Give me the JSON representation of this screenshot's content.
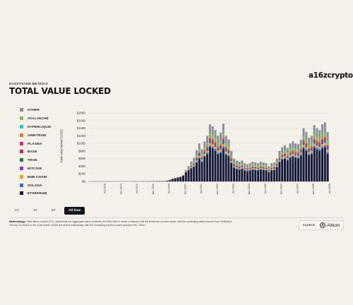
{
  "brand": "a16zcrypto",
  "header": {
    "eyebrow": "ECOSYSTEM METRICS",
    "title": "TOTAL VALUE LOCKED"
  },
  "legend": [
    {
      "name": "OTHER",
      "color": "#8a8f99"
    },
    {
      "name": "AVALANCHE",
      "color": "#7ec43a"
    },
    {
      "name": "HYPERLIQUID",
      "color": "#27c3d6"
    },
    {
      "name": "ARBITRUM",
      "color": "#e07a2a"
    },
    {
      "name": "PLASMA",
      "color": "#e0246f"
    },
    {
      "name": "BASE",
      "color": "#d6204a"
    },
    {
      "name": "TRON",
      "color": "#1f7a3a"
    },
    {
      "name": "BITCOIN",
      "color": "#7a3ad6"
    },
    {
      "name": "BNB CHAIN",
      "color": "#e8a020"
    },
    {
      "name": "SOLANA",
      "color": "#2f6fe0"
    },
    {
      "name": "ETHEREUM",
      "color": "#141a38"
    }
  ],
  "tabs": [
    {
      "label": "1Y",
      "active": false
    },
    {
      "label": "3Y",
      "active": false
    },
    {
      "label": "5Y",
      "active": false
    },
    {
      "label": "All time",
      "active": true
    }
  ],
  "footer": {
    "methodology_label": "Methodology:",
    "methodology_text": "Total Value Locked (TVL) represents the aggregate value of assets (in USD) held in smart contracts of all the protocols on each chain, with the underlying data sourced from DefiLlama.",
    "methodology_text2": "The top 10 chains in the most recent month are shown individually, with the remaining tracked chains grouped into \"Other.\"",
    "source_label": "SOURCE",
    "source_name": "Allium"
  },
  "chart_data": {
    "type": "bar",
    "stacked": true,
    "ylabel": "Total value locked (USD)",
    "ylim": [
      0,
      180
    ],
    "yticks": [
      0,
      20,
      40,
      60,
      80,
      100,
      120,
      140,
      160,
      180
    ],
    "ytick_labels": [
      "$0",
      "$20B",
      "$40B",
      "$60B",
      "$80B",
      "$100B",
      "$120B",
      "$140B",
      "$160B",
      "$180B"
    ],
    "x_ticks": [
      "Jul 2018",
      "Jan 2019",
      "Jul 2019",
      "Jan 2020",
      "Jul 2020",
      "Jan 2021",
      "Jul 2021",
      "Jan 2022",
      "Jul 2022",
      "Jan 2023",
      "Jul 2023",
      "Jan 2024",
      "Jul 2024",
      "Jan 2025",
      "Jul 2025"
    ],
    "series_order": [
      "ETHEREUM",
      "SOLANA",
      "BNB CHAIN",
      "BITCOIN",
      "TRON",
      "BASE",
      "PLASMA",
      "ARBITRUM",
      "HYPERLIQUID",
      "AVALANCHE",
      "OTHER"
    ],
    "start_month": "2018-01",
    "totals": [
      0.1,
      0.1,
      0.2,
      0.2,
      0.2,
      0.2,
      0.3,
      0.3,
      0.3,
      0.3,
      0.3,
      0.3,
      0.3,
      0.4,
      0.4,
      0.4,
      0.5,
      0.5,
      0.5,
      0.6,
      0.6,
      0.6,
      0.7,
      0.7,
      0.8,
      0.8,
      0.9,
      1,
      1,
      2,
      4,
      7,
      9,
      11,
      13,
      17,
      30,
      40,
      52,
      62,
      82,
      100,
      85,
      105,
      120,
      150,
      145,
      135,
      120,
      128,
      152,
      120,
      110,
      80,
      60,
      55,
      52,
      55,
      48,
      45,
      48,
      52,
      50,
      48,
      52,
      50,
      48,
      40,
      48,
      50,
      60,
      80,
      90,
      95,
      88,
      100,
      105,
      100,
      98,
      110,
      140,
      130,
      115,
      120,
      148,
      140,
      135,
      150,
      155,
      130
    ],
    "eth_share": [
      1,
      1,
      1,
      1,
      1,
      1,
      1,
      1,
      1,
      1,
      1,
      1,
      1,
      1,
      1,
      1,
      1,
      1,
      1,
      1,
      1,
      1,
      1,
      1,
      1,
      1,
      1,
      1,
      1,
      1,
      0.97,
      0.95,
      0.94,
      0.93,
      0.9,
      0.88,
      0.8,
      0.72,
      0.66,
      0.62,
      0.6,
      0.6,
      0.6,
      0.62,
      0.6,
      0.6,
      0.6,
      0.6,
      0.6,
      0.58,
      0.57,
      0.58,
      0.6,
      0.6,
      0.6,
      0.6,
      0.6,
      0.6,
      0.6,
      0.6,
      0.6,
      0.6,
      0.6,
      0.6,
      0.6,
      0.6,
      0.6,
      0.6,
      0.6,
      0.6,
      0.62,
      0.64,
      0.64,
      0.63,
      0.63,
      0.62,
      0.62,
      0.62,
      0.62,
      0.62,
      0.62,
      0.62,
      0.6,
      0.6,
      0.6,
      0.6,
      0.6,
      0.58,
      0.58,
      0.56
    ]
  }
}
